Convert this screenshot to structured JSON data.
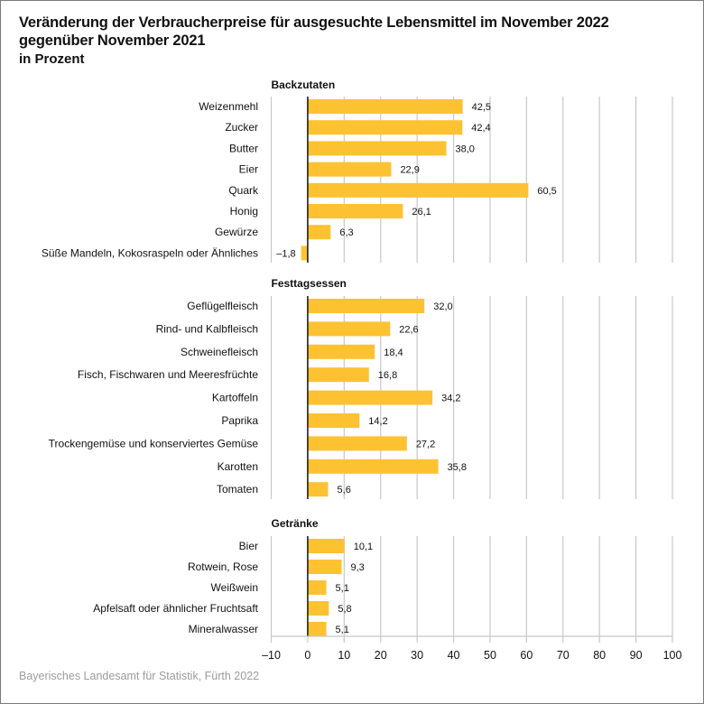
{
  "title_line1": "Veränderung der Verbraucherpreise für ausgesuchte Lebensmittel im November 2022",
  "title_line2": "gegenüber November 2021",
  "subtitle": "in Prozent",
  "source": "Bayerisches Landesamt für Statistik, Fürth 2022",
  "colors": {
    "bar": "#FCC232",
    "grid": "#c8c8c8",
    "zero_line": "#111111",
    "source_text": "#9b9b9b"
  },
  "chart_data": {
    "type": "bar",
    "orientation": "horizontal",
    "title": "Veränderung der Verbraucherpreise für ausgesuchte Lebensmittel im November 2022 gegenüber November 2021",
    "subtitle": "in Prozent",
    "xlabel": "",
    "ylabel": "",
    "xlim": [
      -10,
      100
    ],
    "xticks": [
      -10,
      0,
      10,
      20,
      30,
      40,
      50,
      60,
      70,
      80,
      90,
      100
    ],
    "xtick_labels": [
      "–10",
      "0",
      "10",
      "20",
      "30",
      "40",
      "50",
      "60",
      "70",
      "80",
      "90",
      "100"
    ],
    "grid": true,
    "groups": [
      {
        "name": "Backzutaten",
        "categories": [
          "Weizenmehl",
          "Zucker",
          "Butter",
          "Eier",
          "Quark",
          "Honig",
          "Gewürze",
          "Süße Mandeln, Kokosraspeln oder Ähnliches"
        ],
        "values": [
          42.5,
          42.4,
          38.0,
          22.9,
          60.5,
          26.1,
          6.3,
          -1.8
        ],
        "labels": [
          "42,5",
          "42,4",
          "38,0",
          "22,9",
          "60,5",
          "26,1",
          "6,3",
          "–1,8"
        ]
      },
      {
        "name": "Festtagsessen",
        "categories": [
          "Geflügelfleisch",
          "Rind- und Kalbfleisch",
          "Schweinefleisch",
          "Fisch, Fischwaren und Meeresfrüchte",
          "Kartoffeln",
          "Paprika",
          "Trockengemüse und konserviertes Gemüse",
          "Karotten",
          "Tomaten"
        ],
        "values": [
          32.0,
          22.6,
          18.4,
          16.8,
          34.2,
          14.2,
          27.2,
          35.8,
          5.6
        ],
        "labels": [
          "32,0",
          "22,6",
          "18,4",
          "16,8",
          "34,2",
          "14,2",
          "27,2",
          "35,8",
          "5,6"
        ]
      },
      {
        "name": "Getränke",
        "categories": [
          "Bier",
          "Rotwein, Rose",
          "Weißwein",
          "Apfelsaft oder ähnlicher Fruchtsaft",
          "Mineralwasser"
        ],
        "values": [
          10.1,
          9.3,
          5.1,
          5.8,
          5.1
        ],
        "labels": [
          "10,1",
          "9,3",
          "5,1",
          "5,8",
          "5,1"
        ]
      }
    ]
  }
}
